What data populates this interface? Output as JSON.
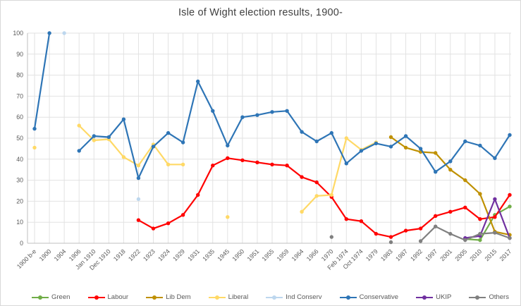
{
  "title": "Isle of Wight election results, 1900-",
  "chart_data": {
    "type": "line",
    "title": "Isle of Wight election results, 1900-",
    "xlabel": "",
    "ylabel": "",
    "ylim": [
      0,
      100
    ],
    "ytick_interval": 10,
    "grid": true,
    "legend_position": "bottom",
    "axis_color": "#bfbfbf",
    "gridline_color": "#e2e2e2",
    "categories": [
      "1900 b-e",
      "1900",
      "1904",
      "1906",
      "Jan 1910",
      "Dec 1910",
      "1918",
      "1922",
      "1923",
      "1924",
      "1929",
      "1931",
      "1935",
      "1945",
      "1950",
      "1951",
      "1955",
      "1959",
      "1964",
      "1966",
      "1970",
      "Feb 1974",
      "Oct 1974",
      "1979",
      "1983",
      "1987",
      "1992",
      "1997",
      "2001",
      "2005",
      "2010",
      "2015",
      "2017"
    ],
    "series": [
      {
        "name": "Green",
        "color": "#70AD47",
        "values": [
          null,
          null,
          null,
          null,
          null,
          null,
          null,
          null,
          null,
          null,
          null,
          null,
          null,
          null,
          null,
          null,
          null,
          null,
          null,
          null,
          null,
          null,
          null,
          null,
          null,
          null,
          null,
          null,
          null,
          2,
          1.5,
          13.5,
          17.5
        ]
      },
      {
        "name": "Labour",
        "color": "#FF0000",
        "values": [
          null,
          null,
          null,
          null,
          null,
          null,
          null,
          11,
          7,
          9.5,
          13.5,
          23,
          37,
          40.5,
          39.5,
          38.5,
          37.5,
          37,
          31.5,
          29,
          22,
          11.5,
          10.5,
          4.5,
          3,
          6,
          7,
          13,
          15,
          17,
          11.5,
          12.5,
          23
        ]
      },
      {
        "name": "Lib Dem",
        "color": "#BF9000",
        "values": [
          null,
          null,
          null,
          null,
          null,
          null,
          null,
          null,
          null,
          null,
          null,
          null,
          null,
          null,
          null,
          null,
          null,
          null,
          null,
          null,
          null,
          null,
          null,
          null,
          50.5,
          45.5,
          43.5,
          43,
          35,
          30,
          23.5,
          5.5,
          4
        ]
      },
      {
        "name": "Liberal",
        "color": "#FFD966",
        "values": [
          45.5,
          null,
          null,
          56,
          49,
          49.5,
          41,
          37,
          47,
          37.5,
          37.5,
          null,
          null,
          12.5,
          null,
          null,
          null,
          null,
          15,
          22.5,
          23,
          50,
          44.5,
          48,
          null,
          null,
          null,
          null,
          null,
          null,
          null,
          null,
          null
        ]
      },
      {
        "name": "Ind Conserv",
        "color": "#BDD7EE",
        "values": [
          null,
          null,
          100,
          null,
          null,
          null,
          null,
          21,
          null,
          null,
          null,
          null,
          null,
          null,
          null,
          null,
          null,
          null,
          null,
          null,
          null,
          null,
          null,
          null,
          null,
          null,
          null,
          null,
          null,
          null,
          null,
          null,
          null
        ]
      },
      {
        "name": "Conservative",
        "color": "#2E75B6",
        "values": [
          54.5,
          100,
          null,
          44,
          51,
          50.5,
          59,
          31,
          46,
          52.5,
          48,
          77,
          63,
          46.5,
          60,
          61,
          62.5,
          63,
          53,
          48.5,
          52.5,
          38,
          44,
          47.5,
          46,
          51,
          45,
          34,
          39,
          48.5,
          46.5,
          40.5,
          51.5
        ]
      },
      {
        "name": "UKIP",
        "color": "#7030A0",
        "values": [
          null,
          null,
          null,
          null,
          null,
          null,
          null,
          null,
          null,
          null,
          null,
          null,
          null,
          null,
          null,
          null,
          null,
          null,
          null,
          null,
          null,
          null,
          null,
          null,
          null,
          null,
          null,
          null,
          null,
          2.5,
          3.5,
          21,
          2.5
        ]
      },
      {
        "name": "Others",
        "color": "#808080",
        "values": [
          null,
          null,
          null,
          null,
          null,
          null,
          null,
          null,
          null,
          null,
          null,
          null,
          null,
          null,
          null,
          null,
          null,
          null,
          null,
          null,
          3,
          null,
          null,
          null,
          0.5,
          null,
          1,
          8,
          4.5,
          1.5,
          4.5,
          5,
          2.5
        ]
      }
    ]
  }
}
